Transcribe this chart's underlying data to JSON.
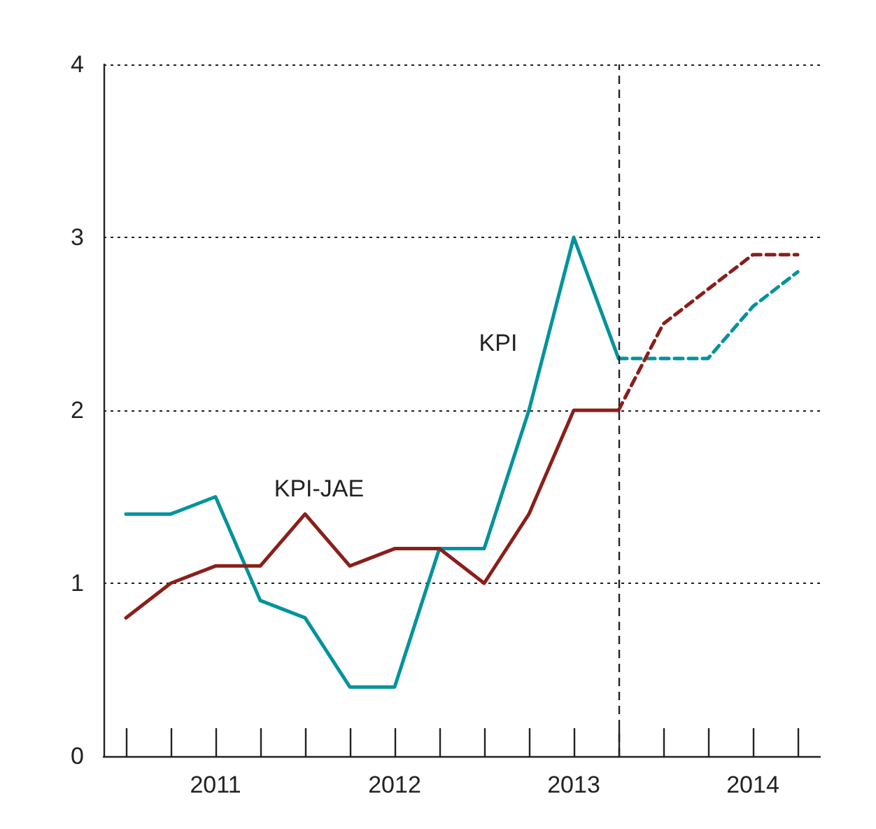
{
  "chart_data": {
    "type": "line",
    "xlim": [
      2010.875,
      2014.875
    ],
    "xticks": [
      {
        "value": 2011.5,
        "label": "2011"
      },
      {
        "value": 2012.5,
        "label": "2012"
      },
      {
        "value": 2013.5,
        "label": "2013"
      },
      {
        "value": 2014.5,
        "label": "2014"
      }
    ],
    "ylim": [
      0,
      4
    ],
    "yticks": [
      0,
      1,
      2,
      3,
      4
    ],
    "grid": "y",
    "legend": false,
    "marker": "none",
    "series": [
      {
        "name": "KPI",
        "color": "#00939c",
        "line_style": "solid",
        "x": [
          2011,
          2011.25,
          2011.5,
          2011.75,
          2012,
          2012.25,
          2012.5,
          2012.75,
          2013,
          2013.25,
          2013.5,
          2013.75
        ],
        "values": [
          1.4,
          1.4,
          1.5,
          0.9,
          0.8,
          0.4,
          0.4,
          1.2,
          1.2,
          2.0,
          3.0,
          2.3
        ]
      },
      {
        "color": "#00939c",
        "line_style": "dashed",
        "x": [
          2013.75,
          2014,
          2014.25,
          2014.5,
          2014.75
        ],
        "values": [
          2.3,
          2.3,
          2.3,
          2.6,
          2.8
        ]
      },
      {
        "name": "KPI-JAE",
        "color": "#8a1f1a",
        "line_style": "solid",
        "x": [
          2011,
          2011.25,
          2011.5,
          2011.75,
          2012,
          2012.25,
          2012.5,
          2012.75,
          2013,
          2013.25,
          2013.5,
          2013.75
        ],
        "values": [
          0.8,
          1.0,
          1.1,
          1.1,
          1.4,
          1.1,
          1.2,
          1.2,
          1.0,
          1.4,
          2.0,
          2.0
        ]
      },
      {
        "color": "#8a1f1a",
        "line_style": "dashed",
        "x": [
          2013.75,
          2014,
          2014.25,
          2014.5,
          2014.75
        ],
        "values": [
          2.0,
          2.5,
          2.7,
          2.9,
          2.9
        ]
      }
    ],
    "ref_lines": [
      {
        "axis": "x",
        "value": 2013.75,
        "color": "#222222",
        "line_style": "dashed"
      }
    ]
  }
}
